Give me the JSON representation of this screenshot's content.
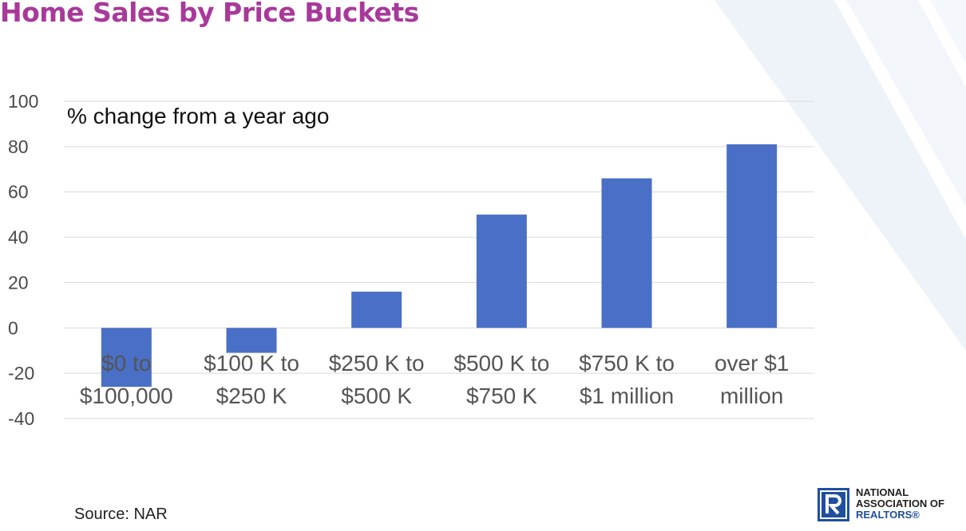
{
  "slide": {
    "title": "Home Sales by Price Buckets",
    "source": "Source: NAR"
  },
  "logo": {
    "line1": "NATIONAL",
    "line2": "ASSOCIATION OF",
    "line3": "REALTORS®"
  },
  "colors": {
    "title": "#a8399a",
    "bar": "#4a6fc6",
    "grid": "#d9d9d9",
    "logo_blue": "#1f4f9e"
  },
  "chart_data": {
    "type": "bar",
    "title": "",
    "annotation": "% change from a year ago",
    "categories": [
      [
        "$0 to",
        "$100,000"
      ],
      [
        "$100 K to",
        "$250 K"
      ],
      [
        "$250 K to",
        "$500 K"
      ],
      [
        "$500 K to",
        "$750 K"
      ],
      [
        "$750 K to",
        "$1 million"
      ],
      [
        "over $1",
        "million"
      ]
    ],
    "values": [
      -26,
      -11,
      16,
      50,
      66,
      81
    ],
    "ylim": [
      -40,
      100
    ],
    "yticks": [
      100,
      80,
      60,
      40,
      20,
      0,
      -20,
      -40
    ],
    "xlabel": "",
    "ylabel": "",
    "grid": true,
    "legend": "none"
  }
}
